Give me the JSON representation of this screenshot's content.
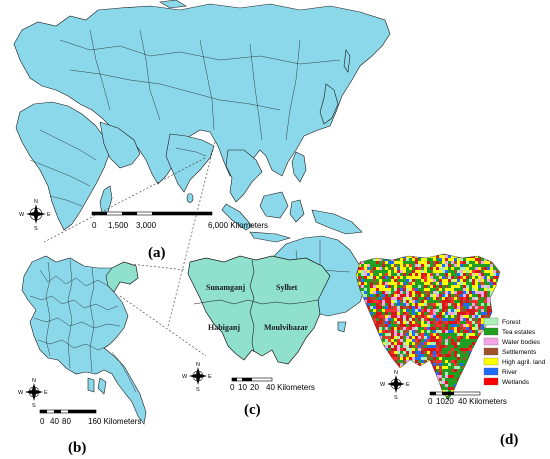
{
  "panels": {
    "a": {
      "label": "(a)",
      "scale": {
        "ticks": [
          "0",
          "1,500",
          "3,000",
          "6,000 Kilometers"
        ]
      }
    },
    "b": {
      "label": "(b)",
      "scale": {
        "ticks": [
          "0",
          "40",
          "80",
          "160 Kilometers"
        ]
      }
    },
    "c": {
      "label": "(c)",
      "scale": {
        "ticks": [
          "0",
          "10",
          "20",
          "40 Kilometers"
        ]
      },
      "districts": [
        "Sunamganj",
        "Sylhet",
        "Habiganj",
        "Moulvibazar"
      ]
    },
    "d": {
      "label": "(d)",
      "scale": {
        "ticks": [
          "0",
          "1020",
          "40 Kilometers"
        ]
      }
    }
  },
  "compass": {
    "n": "N",
    "s": "S",
    "e": "E",
    "w": "W"
  },
  "legend": [
    {
      "label": "Forest",
      "color": "#a8f0b8"
    },
    {
      "label": "Tea estates",
      "color": "#1f9e1f"
    },
    {
      "label": "Water bodies",
      "color": "#f2a6e8"
    },
    {
      "label": "Settlements",
      "color": "#a0522d"
    },
    {
      "label": "High agril. land",
      "color": "#ffff00"
    },
    {
      "label": "River",
      "color": "#1e6cff"
    },
    {
      "label": "Wetlands",
      "color": "#ff0000"
    }
  ],
  "colors": {
    "land": "#8ad8ea",
    "highlight": "#8fe0cc",
    "outline": "#1a1a1a"
  }
}
